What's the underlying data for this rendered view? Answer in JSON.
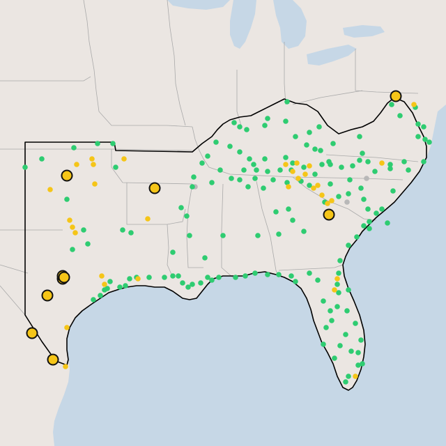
{
  "map": {
    "colors": {
      "ocean": "#c6d7e6",
      "land": "#ebe6e2",
      "state_border": "#a9a9a9",
      "region_outline": "#000000",
      "station_green": "#2ecc71",
      "station_yellow": "#f5c518",
      "station_gray": "#b8b8b8",
      "station_large_fill": "#f5c518",
      "station_large_stroke": "#111111"
    },
    "legend": [],
    "markers": {
      "green_count": 170,
      "yellow_count": 32,
      "gray_count": 3,
      "large_yellow_count": 10
    }
  }
}
